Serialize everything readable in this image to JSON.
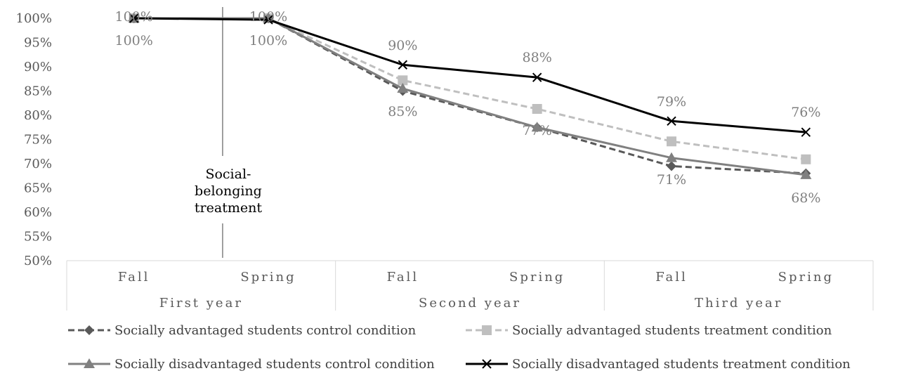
{
  "chart_data": {
    "type": "line",
    "ylim": [
      50,
      100
    ],
    "yticks": [
      "50%",
      "55%",
      "60%",
      "65%",
      "70%",
      "75%",
      "80%",
      "85%",
      "90%",
      "95%",
      "100%"
    ],
    "categories": [
      "Fall",
      "Spring",
      "Fall",
      "Spring",
      "Fall",
      "Spring"
    ],
    "groups": [
      "First year",
      "Second year",
      "Third year"
    ],
    "annotation": "Social-belonging treatment",
    "legend_position": "bottom",
    "series": [
      {
        "name": "Socially advantaged students control condition",
        "values": [
          100,
          100,
          85,
          77.5,
          69.5,
          68
        ],
        "color": "#595959",
        "dash": "dashed",
        "marker": "diamond"
      },
      {
        "name": "Socially advantaged students treatment condition",
        "values": [
          100,
          100,
          87.2,
          81.3,
          74.6,
          70.9
        ],
        "color": "#bfbfbf",
        "dash": "dashed",
        "marker": "square"
      },
      {
        "name": "Socially disadvantaged students control condition",
        "values": [
          100,
          100,
          85.5,
          77.5,
          71.2,
          67.7
        ],
        "color": "#808080",
        "dash": "solid",
        "marker": "triangle"
      },
      {
        "name": "Socially disadvantaged students treatment condition",
        "values": [
          100,
          99.7,
          90.4,
          87.8,
          78.8,
          76.5
        ],
        "color": "#000000",
        "dash": "solid",
        "marker": "x"
      }
    ],
    "data_labels": [
      {
        "text": "100%",
        "category": 0,
        "position": "above"
      },
      {
        "text": "100%",
        "category": 0,
        "position": "below"
      },
      {
        "text": "100%",
        "category": 1,
        "position": "above"
      },
      {
        "text": "100%",
        "category": 1,
        "position": "below"
      },
      {
        "text": "90%",
        "category": 2,
        "position": "above"
      },
      {
        "text": "85%",
        "category": 2,
        "position": "below"
      },
      {
        "text": "88%",
        "category": 3,
        "position": "above"
      },
      {
        "text": "77%",
        "category": 3,
        "position": "below"
      },
      {
        "text": "79%",
        "category": 4,
        "position": "above"
      },
      {
        "text": "71%",
        "category": 4,
        "position": "below"
      },
      {
        "text": "76%",
        "category": 5,
        "position": "above"
      },
      {
        "text": "68%",
        "category": 5,
        "position": "below"
      }
    ]
  }
}
